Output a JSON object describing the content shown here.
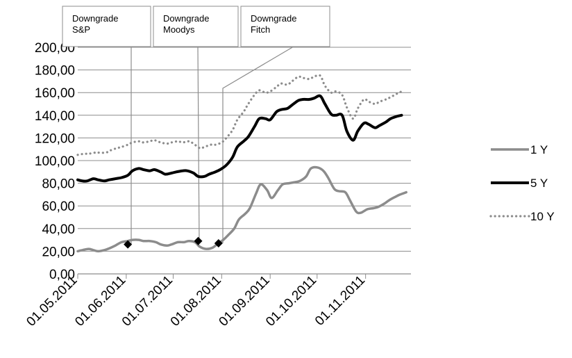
{
  "chart_data": {
    "type": "line",
    "y_ticks": [
      "0,00",
      "20,00",
      "40,00",
      "60,00",
      "80,00",
      "100,00",
      "120,00",
      "140,00",
      "160,00",
      "180,00",
      "200,00"
    ],
    "ylim": [
      0,
      200
    ],
    "x_range": [
      "2011-05-01",
      "2011-11-30"
    ],
    "x_ticks": [
      {
        "label": "01.05.2011",
        "date": "2011-05-01"
      },
      {
        "label": "01.06.2011",
        "date": "2011-06-01"
      },
      {
        "label": "01.07.2011",
        "date": "2011-07-01"
      },
      {
        "label": "01.08.2011",
        "date": "2011-08-01"
      },
      {
        "label": "01.09.2011",
        "date": "2011-09-01"
      },
      {
        "label": "01.10.2011",
        "date": "2011-10-01"
      },
      {
        "label": "01.11.2011",
        "date": "2011-11-01"
      }
    ],
    "grid": "horizontal",
    "legend_position": "right",
    "series": [
      {
        "name": "1 Y",
        "color": "#8c8c8c",
        "style": "solid",
        "points": [
          [
            "2011-05-01",
            20
          ],
          [
            "2011-05-04",
            21
          ],
          [
            "2011-05-08",
            22
          ],
          [
            "2011-05-11",
            21
          ],
          [
            "2011-05-14",
            20
          ],
          [
            "2011-05-18",
            21
          ],
          [
            "2011-05-22",
            23
          ],
          [
            "2011-05-25",
            25
          ],
          [
            "2011-05-29",
            28
          ],
          [
            "2011-06-02",
            29
          ],
          [
            "2011-06-05",
            30
          ],
          [
            "2011-06-09",
            30
          ],
          [
            "2011-06-12",
            29
          ],
          [
            "2011-06-16",
            29
          ],
          [
            "2011-06-20",
            28
          ],
          [
            "2011-06-23",
            26
          ],
          [
            "2011-06-27",
            25
          ],
          [
            "2011-06-30",
            26
          ],
          [
            "2011-07-04",
            28
          ],
          [
            "2011-07-08",
            28
          ],
          [
            "2011-07-11",
            29
          ],
          [
            "2011-07-15",
            28
          ],
          [
            "2011-07-18",
            24
          ],
          [
            "2011-07-22",
            22
          ],
          [
            "2011-07-26",
            23
          ],
          [
            "2011-07-29",
            26
          ],
          [
            "2011-08-02",
            30
          ],
          [
            "2011-08-05",
            34
          ],
          [
            "2011-08-09",
            40
          ],
          [
            "2011-08-12",
            48
          ],
          [
            "2011-08-16",
            53
          ],
          [
            "2011-08-19",
            58
          ],
          [
            "2011-08-23",
            71
          ],
          [
            "2011-08-26",
            79
          ],
          [
            "2011-08-30",
            74
          ],
          [
            "2011-09-02",
            67
          ],
          [
            "2011-09-06",
            74
          ],
          [
            "2011-09-09",
            79
          ],
          [
            "2011-09-13",
            80
          ],
          [
            "2011-09-17",
            81
          ],
          [
            "2011-09-20",
            82
          ],
          [
            "2011-09-24",
            86
          ],
          [
            "2011-09-27",
            93
          ],
          [
            "2011-10-01",
            94
          ],
          [
            "2011-10-05",
            91
          ],
          [
            "2011-10-08",
            85
          ],
          [
            "2011-10-12",
            75
          ],
          [
            "2011-10-15",
            73
          ],
          [
            "2011-10-19",
            72
          ],
          [
            "2011-10-22",
            65
          ],
          [
            "2011-10-26",
            55
          ],
          [
            "2011-10-29",
            54
          ],
          [
            "2011-11-02",
            57
          ],
          [
            "2011-11-06",
            58
          ],
          [
            "2011-11-09",
            59
          ],
          [
            "2011-11-13",
            62
          ],
          [
            "2011-11-16",
            65
          ],
          [
            "2011-11-20",
            68
          ],
          [
            "2011-11-23",
            70
          ],
          [
            "2011-11-27",
            72
          ]
        ]
      },
      {
        "name": "5 Y",
        "color": "#000000",
        "style": "solid",
        "points": [
          [
            "2011-05-01",
            83
          ],
          [
            "2011-05-04",
            82
          ],
          [
            "2011-05-07",
            82
          ],
          [
            "2011-05-11",
            84
          ],
          [
            "2011-05-14",
            83
          ],
          [
            "2011-05-18",
            82
          ],
          [
            "2011-05-21",
            83
          ],
          [
            "2011-05-25",
            84
          ],
          [
            "2011-05-29",
            85
          ],
          [
            "2011-06-02",
            87
          ],
          [
            "2011-06-05",
            91
          ],
          [
            "2011-06-09",
            93
          ],
          [
            "2011-06-12",
            92
          ],
          [
            "2011-06-16",
            91
          ],
          [
            "2011-06-19",
            92
          ],
          [
            "2011-06-23",
            90
          ],
          [
            "2011-06-26",
            88
          ],
          [
            "2011-06-30",
            89
          ],
          [
            "2011-07-03",
            90
          ],
          [
            "2011-07-07",
            91
          ],
          [
            "2011-07-10",
            91
          ],
          [
            "2011-07-14",
            89
          ],
          [
            "2011-07-17",
            86
          ],
          [
            "2011-07-21",
            86
          ],
          [
            "2011-07-24",
            88
          ],
          [
            "2011-07-28",
            90
          ],
          [
            "2011-07-31",
            92
          ],
          [
            "2011-08-04",
            96
          ],
          [
            "2011-08-08",
            103
          ],
          [
            "2011-08-11",
            112
          ],
          [
            "2011-08-15",
            117
          ],
          [
            "2011-08-18",
            121
          ],
          [
            "2011-08-22",
            130
          ],
          [
            "2011-08-25",
            137
          ],
          [
            "2011-08-29",
            137
          ],
          [
            "2011-09-01",
            136
          ],
          [
            "2011-09-05",
            143
          ],
          [
            "2011-09-08",
            145
          ],
          [
            "2011-09-12",
            146
          ],
          [
            "2011-09-15",
            149
          ],
          [
            "2011-09-19",
            153
          ],
          [
            "2011-09-22",
            154
          ],
          [
            "2011-09-26",
            154
          ],
          [
            "2011-09-29",
            155
          ],
          [
            "2011-10-03",
            157
          ],
          [
            "2011-10-06",
            150
          ],
          [
            "2011-10-10",
            141
          ],
          [
            "2011-10-13",
            140
          ],
          [
            "2011-10-17",
            140
          ],
          [
            "2011-10-20",
            126
          ],
          [
            "2011-10-24",
            118
          ],
          [
            "2011-10-27",
            126
          ],
          [
            "2011-10-31",
            133
          ],
          [
            "2011-11-03",
            132
          ],
          [
            "2011-11-07",
            129
          ],
          [
            "2011-11-10",
            131
          ],
          [
            "2011-11-14",
            134
          ],
          [
            "2011-11-17",
            137
          ],
          [
            "2011-11-21",
            139
          ],
          [
            "2011-11-24",
            140
          ]
        ]
      },
      {
        "name": "10 Y",
        "color": "#8c8c8c",
        "style": "dotted",
        "points": [
          [
            "2011-05-01",
            105
          ],
          [
            "2011-05-05",
            106
          ],
          [
            "2011-05-08",
            106
          ],
          [
            "2011-05-12",
            107
          ],
          [
            "2011-05-15",
            107
          ],
          [
            "2011-05-19",
            107
          ],
          [
            "2011-05-22",
            109
          ],
          [
            "2011-05-26",
            111
          ],
          [
            "2011-05-29",
            112
          ],
          [
            "2011-06-02",
            114
          ],
          [
            "2011-06-05",
            116
          ],
          [
            "2011-06-09",
            117
          ],
          [
            "2011-06-12",
            116
          ],
          [
            "2011-06-16",
            117
          ],
          [
            "2011-06-19",
            118
          ],
          [
            "2011-06-23",
            116
          ],
          [
            "2011-06-27",
            115
          ],
          [
            "2011-06-30",
            116
          ],
          [
            "2011-07-04",
            117
          ],
          [
            "2011-07-07",
            116
          ],
          [
            "2011-07-11",
            117
          ],
          [
            "2011-07-14",
            115
          ],
          [
            "2011-07-18",
            111
          ],
          [
            "2011-07-21",
            112
          ],
          [
            "2011-07-25",
            114
          ],
          [
            "2011-07-28",
            114
          ],
          [
            "2011-08-01",
            116
          ],
          [
            "2011-08-04",
            120
          ],
          [
            "2011-08-08",
            127
          ],
          [
            "2011-08-11",
            136
          ],
          [
            "2011-08-15",
            143
          ],
          [
            "2011-08-18",
            150
          ],
          [
            "2011-08-22",
            158
          ],
          [
            "2011-08-25",
            162
          ],
          [
            "2011-08-29",
            160
          ],
          [
            "2011-09-01",
            161
          ],
          [
            "2011-09-05",
            165
          ],
          [
            "2011-09-08",
            168
          ],
          [
            "2011-09-12",
            167
          ],
          [
            "2011-09-15",
            170
          ],
          [
            "2011-09-19",
            174
          ],
          [
            "2011-09-22",
            173
          ],
          [
            "2011-09-26",
            172
          ],
          [
            "2011-09-29",
            174
          ],
          [
            "2011-10-03",
            175
          ],
          [
            "2011-10-06",
            166
          ],
          [
            "2011-10-10",
            160
          ],
          [
            "2011-10-13",
            161
          ],
          [
            "2011-10-17",
            158
          ],
          [
            "2011-10-20",
            147
          ],
          [
            "2011-10-24",
            137
          ],
          [
            "2011-10-27",
            146
          ],
          [
            "2011-10-31",
            154
          ],
          [
            "2011-11-03",
            152
          ],
          [
            "2011-11-07",
            150
          ],
          [
            "2011-11-10",
            152
          ],
          [
            "2011-11-14",
            154
          ],
          [
            "2011-11-17",
            156
          ],
          [
            "2011-11-21",
            159
          ],
          [
            "2011-11-24",
            161
          ]
        ]
      }
    ],
    "annotations": [
      {
        "label_line1": "Downgrade",
        "label_line2": "S&P",
        "date": "2011-06-02",
        "y": 26
      },
      {
        "label_line1": "Downgrade",
        "label_line2": "Moodys",
        "date": "2011-07-17",
        "y": 29
      },
      {
        "label_line1": "Downgrade",
        "label_line2": "Fitch",
        "date": "2011-07-30",
        "y": 27
      }
    ]
  }
}
